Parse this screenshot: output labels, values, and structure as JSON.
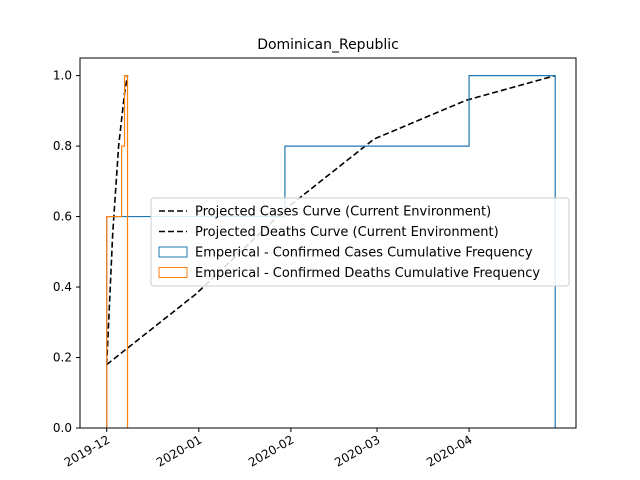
{
  "chart_data": {
    "type": "line",
    "title": "Dominican_Republic",
    "xlabel": "",
    "ylabel": "",
    "x_axis": {
      "type": "date",
      "range": [
        "2019-11-22",
        "2020-05-07"
      ],
      "ticks": [
        {
          "date": "2019-12-01",
          "label": "2019-12"
        },
        {
          "date": "2020-01-01",
          "label": "2020-01"
        },
        {
          "date": "2020-02-01",
          "label": "2020-02"
        },
        {
          "date": "2020-03-01",
          "label": "2020-03"
        },
        {
          "date": "2020-04-01",
          "label": "2020-04"
        }
      ]
    },
    "ylim": [
      0,
      1.05
    ],
    "yticks": [
      "0.0",
      "0.2",
      "0.4",
      "0.6",
      "0.8",
      "1.0"
    ],
    "grid": false,
    "legend_position": "center-right",
    "series": [
      {
        "name": "Projected Cases Curve (Current Environment)",
        "kind": "line",
        "style": "dashed",
        "color": "#000000",
        "points": [
          {
            "x": "2019-12-01",
            "y": 0.18
          },
          {
            "x": "2019-12-31",
            "y": 0.38
          },
          {
            "x": "2020-01-30",
            "y": 0.62
          },
          {
            "x": "2020-02-29",
            "y": 0.82
          },
          {
            "x": "2020-03-31",
            "y": 0.93
          },
          {
            "x": "2020-04-30",
            "y": 1.0
          }
        ]
      },
      {
        "name": "Projected Deaths Curve (Current Environment)",
        "kind": "line",
        "style": "dashed",
        "color": "#000000",
        "points": [
          {
            "x": "2019-12-01",
            "y": 0.18
          },
          {
            "x": "2019-12-03",
            "y": 0.55
          },
          {
            "x": "2019-12-05",
            "y": 0.8
          },
          {
            "x": "2019-12-07",
            "y": 0.95
          },
          {
            "x": "2019-12-08",
            "y": 1.0
          }
        ]
      },
      {
        "name": "Emperical - Confirmed Cases Cumulative Frequency",
        "kind": "step",
        "color": "#1f77b4",
        "points": [
          {
            "x": "2019-12-01",
            "y": 0.0
          },
          {
            "x": "2019-12-01",
            "y": 0.6
          },
          {
            "x": "2020-01-30",
            "y": 0.6
          },
          {
            "x": "2020-01-30",
            "y": 0.8
          },
          {
            "x": "2020-04-01",
            "y": 0.8
          },
          {
            "x": "2020-04-01",
            "y": 1.0
          },
          {
            "x": "2020-04-30",
            "y": 1.0
          },
          {
            "x": "2020-04-30",
            "y": 0.0
          }
        ]
      },
      {
        "name": "Emperical - Confirmed Deaths Cumulative Frequency",
        "kind": "step",
        "color": "#ff7f0e",
        "points": [
          {
            "x": "2019-12-01",
            "y": 0.0
          },
          {
            "x": "2019-12-01",
            "y": 0.6
          },
          {
            "x": "2019-12-06",
            "y": 0.6
          },
          {
            "x": "2019-12-06",
            "y": 0.8
          },
          {
            "x": "2019-12-07",
            "y": 0.8
          },
          {
            "x": "2019-12-07",
            "y": 0.8
          },
          {
            "x": "2019-12-07",
            "y": 1.0
          },
          {
            "x": "2019-12-08",
            "y": 1.0
          },
          {
            "x": "2019-12-08",
            "y": 0.0
          }
        ]
      }
    ]
  }
}
